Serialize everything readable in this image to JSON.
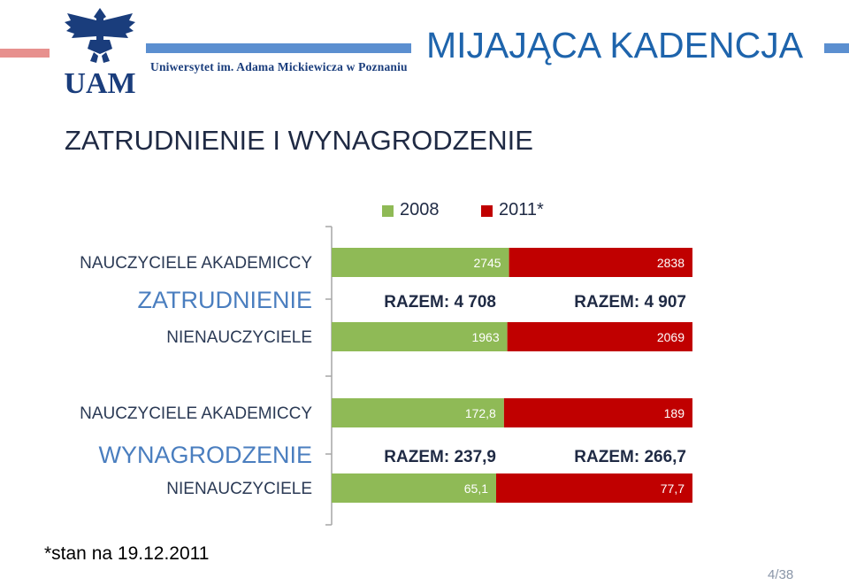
{
  "header": {
    "logo_text": "UAM",
    "university_name": "Uniwersytet im. Adama Mickiewicza w Poznaniu",
    "slide_title": "MIJAJĄCA KADENCJA"
  },
  "section_title": "ZATRUDNIENIE I WYNAGRODZENIE",
  "legend": [
    {
      "label": "2008",
      "color": "#8fba56"
    },
    {
      "label": "2011*",
      "color": "#c00000"
    }
  ],
  "chart_data": [
    {
      "type": "bar",
      "orientation": "horizontal",
      "stacked": true,
      "title": "ZATRUDNIENIE",
      "categories": [
        "NAUCZYCIELE AKADEMICCY",
        "NIENAUCZYCIELE"
      ],
      "series": [
        {
          "name": "2008",
          "values": [
            2745,
            1963
          ],
          "labels": [
            "2745",
            "1963"
          ],
          "color": "#8fba56"
        },
        {
          "name": "2011*",
          "values": [
            2838,
            2069
          ],
          "labels": [
            "2838",
            "2069"
          ],
          "color": "#c00000"
        }
      ],
      "totals": [
        "RAZEM: 4 708",
        "RAZEM: 4 907"
      ]
    },
    {
      "type": "bar",
      "orientation": "horizontal",
      "stacked": true,
      "title": "WYNAGRODZENIE",
      "categories": [
        "NAUCZYCIELE AKADEMICCY",
        "NIENAUCZYCIELE"
      ],
      "series": [
        {
          "name": "2008",
          "values": [
            172.8,
            65.1
          ],
          "labels": [
            "172,8",
            "65,1"
          ],
          "color": "#8fba56"
        },
        {
          "name": "2011*",
          "values": [
            189,
            77.7
          ],
          "labels": [
            "189",
            "77,7"
          ],
          "color": "#c00000"
        }
      ],
      "totals": [
        "RAZEM: 237,9",
        "RAZEM: 266,7"
      ]
    }
  ],
  "colors": {
    "title_blue": "#1e64ac",
    "group_title_blue": "#4a7ebf",
    "deco_red": "#e7908e",
    "deco_blue": "#5b8fd0",
    "axis": "#a6a6a6"
  },
  "footnote": "*stan na 19.12.2011",
  "page_number": "4/38"
}
